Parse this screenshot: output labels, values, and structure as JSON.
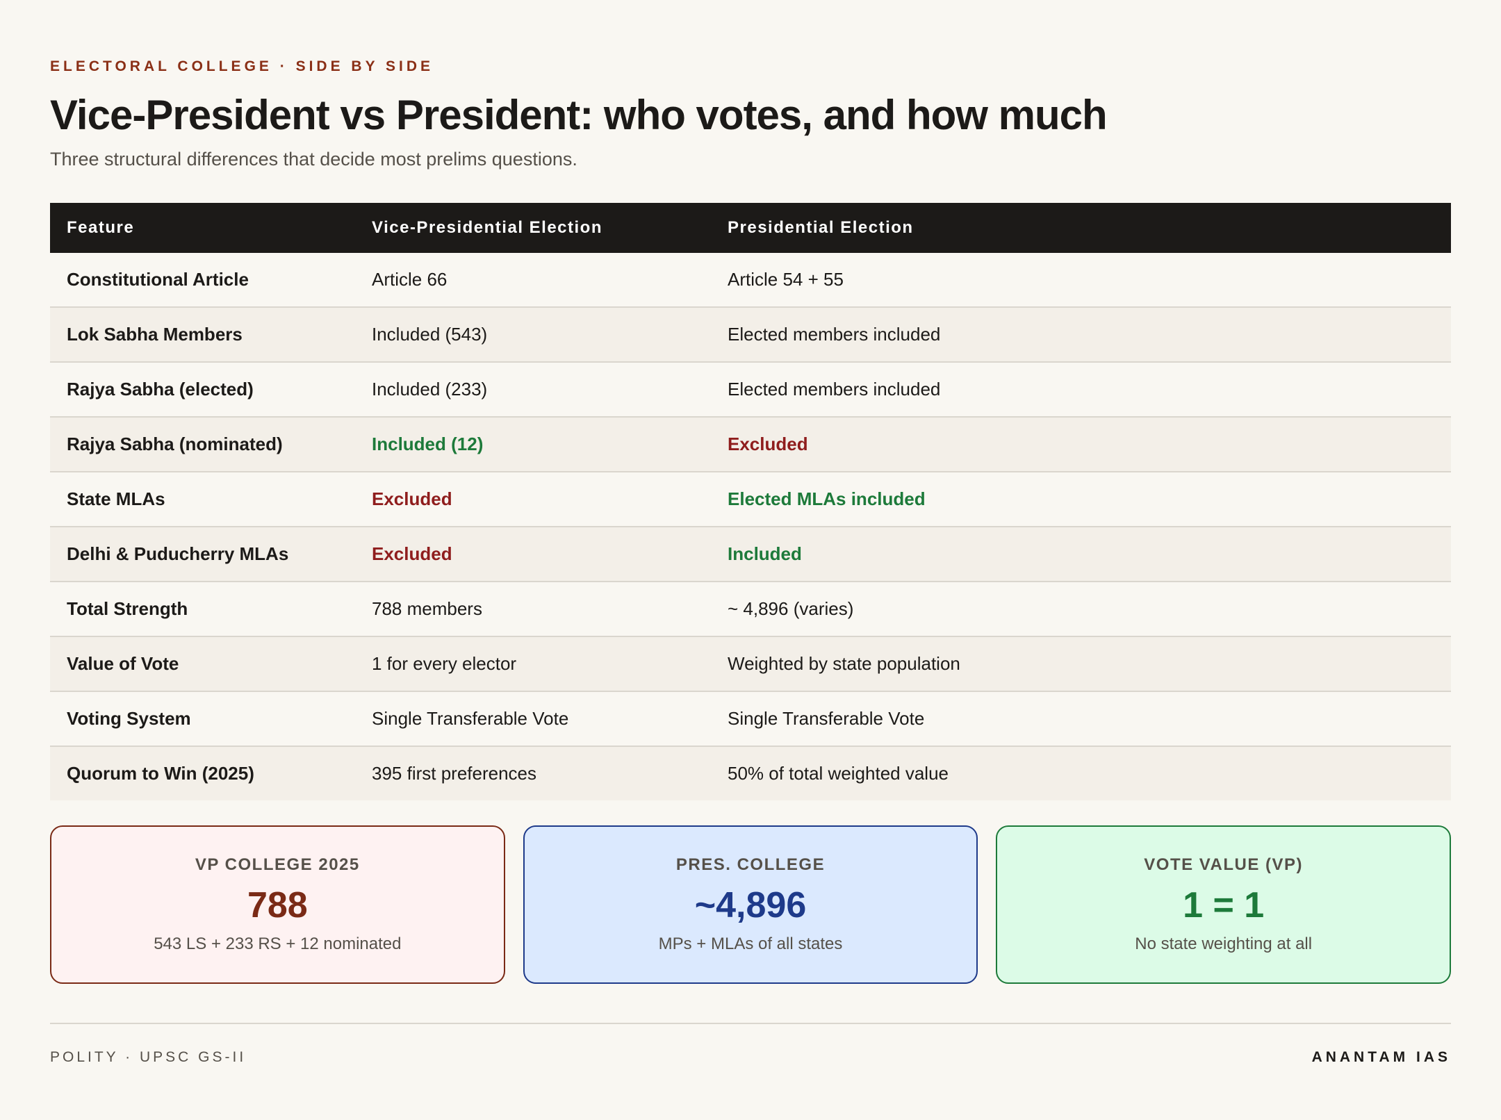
{
  "header": {
    "kicker": "ELECTORAL COLLEGE · SIDE BY SIDE",
    "title": "Vice-President vs President: who votes, and how much",
    "subtitle": "Three structural differences that decide most prelims questions."
  },
  "table": {
    "columns": [
      "Feature",
      "Vice-Presidential Election",
      "Presidential Election"
    ],
    "rows": [
      {
        "feature": "Constitutional Article",
        "vp": "Article 66",
        "pres": "Article 54 + 55",
        "vp_tone": "neutral",
        "pres_tone": "neutral"
      },
      {
        "feature": "Lok Sabha Members",
        "vp": "Included (543)",
        "pres": "Elected members included",
        "vp_tone": "neutral",
        "pres_tone": "neutral"
      },
      {
        "feature": "Rajya Sabha (elected)",
        "vp": "Included (233)",
        "pres": "Elected members included",
        "vp_tone": "neutral",
        "pres_tone": "neutral"
      },
      {
        "feature": "Rajya Sabha (nominated)",
        "vp": "Included (12)",
        "pres": "Excluded",
        "vp_tone": "positive",
        "pres_tone": "negative"
      },
      {
        "feature": "State MLAs",
        "vp": "Excluded",
        "pres": "Elected MLAs included",
        "vp_tone": "negative",
        "pres_tone": "positive"
      },
      {
        "feature": "Delhi & Puducherry MLAs",
        "vp": "Excluded",
        "pres": "Included",
        "vp_tone": "negative",
        "pres_tone": "positive"
      },
      {
        "feature": "Total Strength",
        "vp": "788 members",
        "pres": "~ 4,896 (varies)",
        "vp_tone": "neutral",
        "pres_tone": "neutral"
      },
      {
        "feature": "Value of Vote",
        "vp": "1 for every elector",
        "pres": "Weighted by state population",
        "vp_tone": "neutral",
        "pres_tone": "neutral"
      },
      {
        "feature": "Voting System",
        "vp": "Single Transferable Vote",
        "pres": "Single Transferable Vote",
        "vp_tone": "neutral",
        "pres_tone": "neutral"
      },
      {
        "feature": "Quorum to Win (2025)",
        "vp": "395 first preferences",
        "pres": "50% of total weighted value",
        "vp_tone": "neutral",
        "pres_tone": "neutral"
      }
    ]
  },
  "cards": [
    {
      "label": "VP COLLEGE 2025",
      "value": "788",
      "note": "543 LS + 233 RS + 12 nominated"
    },
    {
      "label": "PRES. COLLEGE",
      "value": "~4,896",
      "note": "MPs + MLAs of all states"
    },
    {
      "label": "VOTE VALUE (VP)",
      "value": "1 = 1",
      "note": "No state weighting at all"
    }
  ],
  "footer": {
    "left": "POLITY · UPSC GS-II",
    "right": "ANANTAM IAS"
  },
  "colors": {
    "accent": "#8a2f16",
    "positive": "#1d7a3a",
    "negative": "#8f1d1d",
    "header_bg": "#1c1a18",
    "card_red_bg": "#fef2f2",
    "card_blue_bg": "#dbe9fe",
    "card_green_bg": "#dcfbe7"
  }
}
